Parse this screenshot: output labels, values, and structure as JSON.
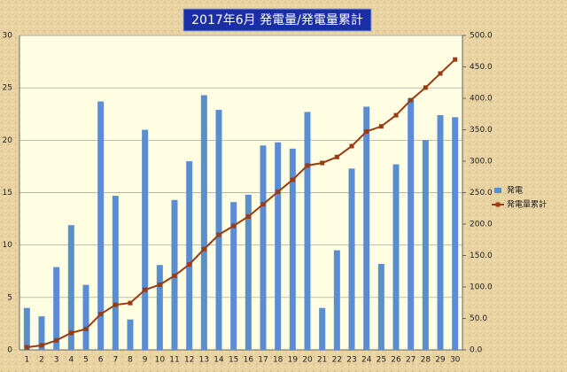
{
  "chart_data": {
    "type": "bar",
    "title": "2017年6月 発電量/発電量累計",
    "categories": [
      "1",
      "2",
      "3",
      "4",
      "5",
      "6",
      "7",
      "8",
      "9",
      "10",
      "11",
      "12",
      "13",
      "14",
      "15",
      "16",
      "17",
      "18",
      "19",
      "20",
      "21",
      "22",
      "23",
      "24",
      "25",
      "26",
      "27",
      "28",
      "29",
      "30"
    ],
    "series": [
      {
        "name": "発電",
        "type": "bar",
        "color": "#5b8ed0",
        "values": [
          4.0,
          3.2,
          7.9,
          11.9,
          6.2,
          23.7,
          14.7,
          2.9,
          21.0,
          8.1,
          14.3,
          18.0,
          24.3,
          22.9,
          14.1,
          14.8,
          19.5,
          19.8,
          19.2,
          22.7,
          4.0,
          9.5,
          17.3,
          23.2,
          8.2,
          17.7,
          24.0,
          20.0,
          22.4,
          22.2
        ]
      },
      {
        "name": "発電量累計",
        "type": "line",
        "axis": "y2",
        "color": "#9a3b12",
        "values": [
          4.0,
          7.2,
          15.1,
          27.0,
          33.2,
          56.9,
          71.6,
          74.5,
          95.5,
          103.6,
          117.9,
          135.9,
          160.2,
          183.1,
          197.2,
          212.0,
          231.5,
          251.3,
          270.5,
          293.2,
          297.2,
          306.7,
          324.0,
          347.2,
          355.4,
          373.1,
          397.1,
          417.1,
          439.5,
          461.7
        ]
      }
    ],
    "ylim": [
      0,
      30
    ],
    "yticks": [
      0,
      5,
      10,
      15,
      20,
      25,
      30
    ],
    "y2lim": [
      0,
      500
    ],
    "y2ticks": [
      {
        "value": 0,
        "label": "0.0"
      },
      {
        "value": 50,
        "label": "50.0"
      },
      {
        "value": 100,
        "label": "100.0"
      },
      {
        "value": 150,
        "label": "150.0"
      },
      {
        "value": 200,
        "label": "200.0"
      },
      {
        "value": 250,
        "label": "250.0"
      },
      {
        "value": 300,
        "label": "300.0"
      },
      {
        "value": 350,
        "label": "350.0"
      },
      {
        "value": 400,
        "label": "400.0"
      },
      {
        "value": 450,
        "label": "450.0"
      },
      {
        "value": 500,
        "label": "500.0"
      }
    ],
    "grid": true,
    "legend": "right"
  }
}
